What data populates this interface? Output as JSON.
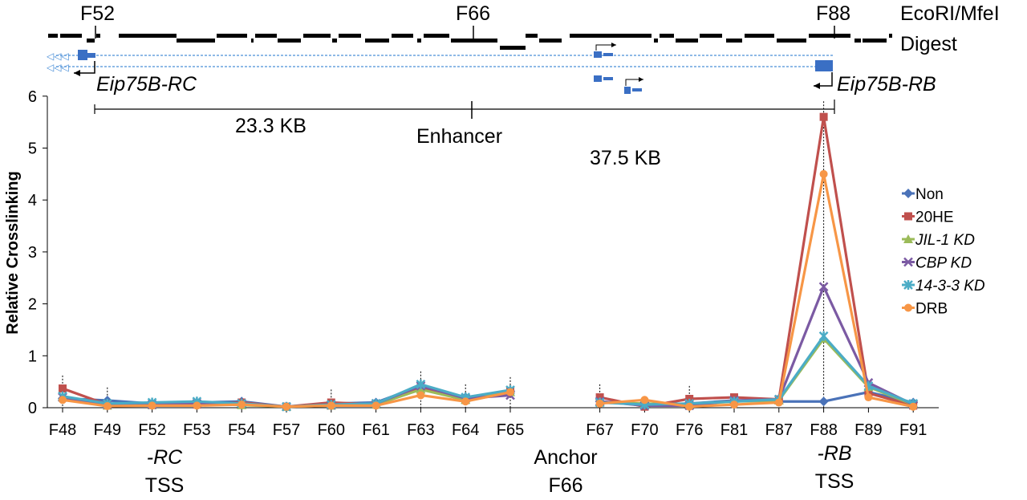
{
  "chart_data": {
    "type": "line",
    "ylabel": "Relative Crosslinking",
    "ylim": [
      0,
      6
    ],
    "yticks": [
      "0",
      "1",
      "2",
      "3",
      "4",
      "5",
      "6"
    ],
    "categories": [
      "F48",
      "F49",
      "F52",
      "F53",
      "F54",
      "F57",
      "F60",
      "F61",
      "F63",
      "F64",
      "F65",
      "F67",
      "F70",
      "F76",
      "F81",
      "F87",
      "F88",
      "F89",
      "F91"
    ],
    "series": [
      {
        "name": "Non",
        "color": "#4a72b8",
        "marker": "diamond",
        "values": [
          0.18,
          0.14,
          0.08,
          0.1,
          0.12,
          0.02,
          0.08,
          0.1,
          0.42,
          0.2,
          0.32,
          0.12,
          0.06,
          0.08,
          0.14,
          0.12,
          0.12,
          0.3,
          0.1
        ]
      },
      {
        "name": "20HE",
        "color": "#c0504d",
        "marker": "square",
        "values": [
          0.37,
          0.06,
          0.06,
          0.06,
          0.1,
          0.02,
          0.1,
          0.06,
          0.38,
          0.15,
          0.32,
          0.2,
          0.02,
          0.17,
          0.2,
          0.16,
          5.6,
          0.28,
          0.04
        ]
      },
      {
        "name": "JIL-1 KD",
        "color": "#9bbb59",
        "marker": "triangle",
        "values": [
          0.2,
          0.04,
          0.05,
          0.08,
          0.05,
          0.02,
          0.04,
          0.06,
          0.35,
          0.15,
          0.3,
          0.1,
          0.08,
          0.06,
          0.12,
          0.14,
          1.33,
          0.4,
          0.06
        ]
      },
      {
        "name": "CBP KD",
        "color": "#7b5aa3",
        "marker": "x",
        "values": [
          0.2,
          0.06,
          0.06,
          0.08,
          0.08,
          0.02,
          0.05,
          0.08,
          0.42,
          0.18,
          0.24,
          0.12,
          0.04,
          0.04,
          0.14,
          0.16,
          2.33,
          0.48,
          0.06
        ]
      },
      {
        "name": "14-3-3 KD",
        "color": "#4bacc6",
        "marker": "star",
        "values": [
          0.22,
          0.08,
          0.1,
          0.12,
          0.08,
          0.02,
          0.06,
          0.08,
          0.45,
          0.2,
          0.34,
          0.1,
          0.06,
          0.08,
          0.12,
          0.16,
          1.38,
          0.42,
          0.08
        ]
      },
      {
        "name": "DRB",
        "color": "#f79646",
        "marker": "circle",
        "values": [
          0.15,
          0.03,
          0.04,
          0.04,
          0.06,
          0.02,
          0.04,
          0.04,
          0.24,
          0.12,
          0.3,
          0.08,
          0.15,
          0.02,
          0.06,
          0.1,
          4.5,
          0.2,
          0.02
        ]
      }
    ],
    "legend_position": "right"
  },
  "digest": {
    "enzyme_label": "EcoRI/MfeI",
    "digest_label": "Digest",
    "fragments": [
      "F52",
      "F66",
      "F88"
    ]
  },
  "genes": {
    "rc_label": "Eip75B-RC",
    "rb_label": "Eip75B-RB"
  },
  "distances": {
    "left": "23.3 KB",
    "right": "37.5 KB",
    "enhancer": "Enhancer"
  },
  "annotations": {
    "rc": "-RC",
    "rc_tss": "TSS",
    "anchor": "Anchor",
    "anchor_frag": "F66",
    "rb": "-RB",
    "rb_tss": "TSS"
  }
}
